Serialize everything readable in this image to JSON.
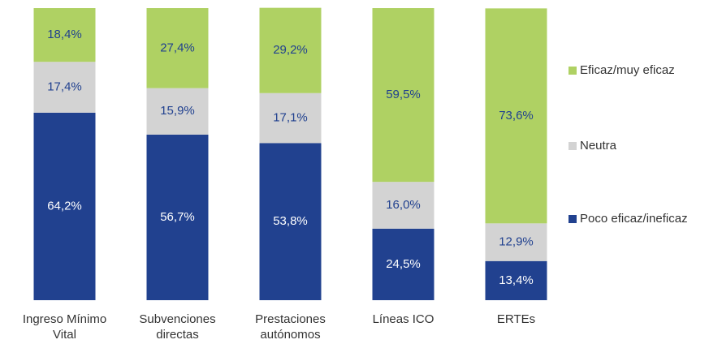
{
  "chart_data": {
    "type": "stacked_bar",
    "categories": [
      "Ingreso Mínimo Vital",
      "Subvenciones directas",
      "Prestaciones autónomos",
      "Líneas ICO",
      "ERTEs"
    ],
    "series": [
      {
        "name": "Poco eficaz/ineficaz",
        "color": "#21418f",
        "values": [
          64.2,
          56.7,
          53.8,
          24.5,
          13.4
        ],
        "value_labels": [
          "64,2%",
          "56,7%",
          "53,8%",
          "24,5%",
          "13,4%"
        ]
      },
      {
        "name": "Neutra",
        "color": "#d3d3d3",
        "values": [
          17.4,
          15.9,
          17.1,
          16.0,
          12.9
        ],
        "value_labels": [
          "17,4%",
          "15,9%",
          "17,1%",
          "16,0%",
          "12,9%"
        ]
      },
      {
        "name": "Eficaz/muy eficaz",
        "color": "#afd163",
        "values": [
          18.4,
          27.4,
          29.2,
          59.5,
          73.6
        ],
        "value_labels": [
          "18,4%",
          "27,4%",
          "29,2%",
          "59,5%",
          "73,6%"
        ]
      }
    ],
    "ylim": [
      0,
      100
    ]
  }
}
